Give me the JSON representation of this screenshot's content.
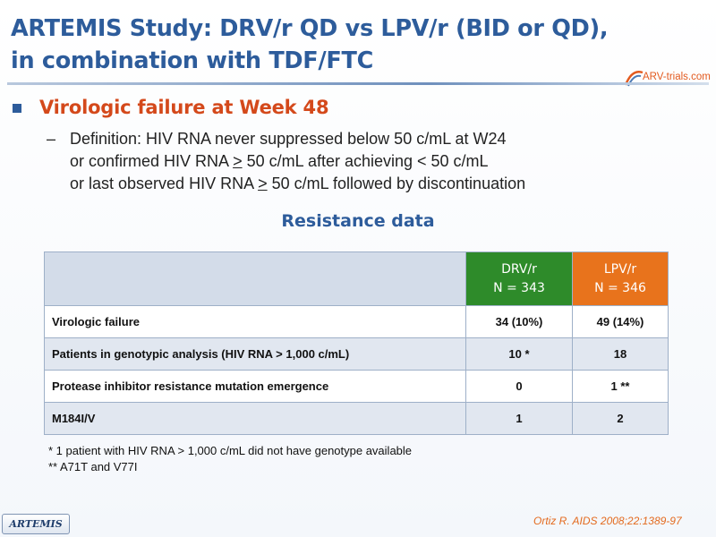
{
  "slide": {
    "title_line1": "ARTEMIS Study: DRV/r QD vs LPV/r (BID or QD),",
    "title_line2": "in combination with TDF/FTC",
    "logo_text": "ARV-trials.com",
    "bullet": "Virologic failure at Week 48",
    "definition": {
      "dash": "–",
      "line1": "Definition: HIV RNA never suppressed below 50 c/mL at W24",
      "line2_pre": "or confirmed HIV RNA ",
      "line2_geq": ">",
      "line2_post": " 50 c/mL after achieving < 50 c/mL",
      "line3_pre": "or last observed HIV RNA ",
      "line3_geq": ">",
      "line3_post": " 50 c/mL followed by discontinuation"
    },
    "subtitle": "Resistance data",
    "citation": "Ortiz R. AIDS 2008;22:1389-97",
    "study_tag": "ARTEMIS"
  },
  "table": {
    "columns": [
      {
        "name": "DRV/r",
        "n": "N = 343",
        "color": "#2e8b2a"
      },
      {
        "name": "LPV/r",
        "n": "N = 346",
        "color": "#e8731c"
      }
    ],
    "rows": [
      {
        "label": "Virologic failure",
        "drv": "34 (10%)",
        "lpv": "49 (14%)"
      },
      {
        "label": "Patients in genotypic analysis (HIV RNA > 1,000 c/mL)",
        "drv": "10 *",
        "lpv": "18"
      },
      {
        "label": "Protease inhibitor resistance mutation emergence",
        "drv": "0",
        "lpv": "1 **"
      },
      {
        "label": "M184I/V",
        "drv": "1",
        "lpv": "2"
      }
    ]
  },
  "footnotes": [
    "* 1 patient with HIV RNA > 1,000 c/mL did not have genotype available",
    "** A71T and V77I"
  ],
  "colors": {
    "title": "#2d5c9b",
    "bullet_text": "#d4491b",
    "drv_header": "#2e8b2a",
    "lpv_header": "#e8731c"
  }
}
